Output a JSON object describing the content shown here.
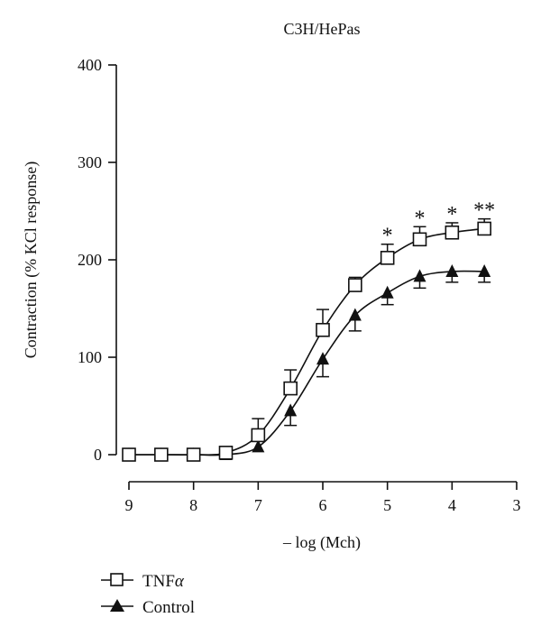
{
  "chart_data": {
    "type": "line",
    "title": "C3H/HePas",
    "xlabel": "– log (Mch)",
    "ylabel": "Contraction (% KCl response)",
    "xlim": [
      9,
      3
    ],
    "ylim": [
      0,
      400
    ],
    "x_reversed": true,
    "x_ticks": [
      9,
      8,
      7,
      6,
      5,
      4,
      3
    ],
    "y_ticks": [
      0,
      100,
      200,
      300,
      400
    ],
    "x": [
      9,
      8.5,
      8,
      7.5,
      7,
      6.5,
      6,
      5.5,
      5,
      4.5,
      4,
      3.5
    ],
    "series": [
      {
        "name": "TNFα",
        "marker": "open-square",
        "values": [
          0,
          0,
          0,
          2,
          20,
          68,
          128,
          174,
          202,
          221,
          228,
          232
        ],
        "error": [
          0,
          0,
          0,
          0,
          17,
          19,
          21,
          8,
          14,
          13,
          10,
          10
        ]
      },
      {
        "name": "Control",
        "marker": "filled-triangle",
        "values": [
          0,
          0,
          0,
          0,
          8,
          45,
          98,
          143,
          166,
          183,
          188,
          188
        ],
        "error": [
          0,
          0,
          0,
          0,
          0,
          15,
          18,
          16,
          12,
          12,
          11,
          11
        ]
      }
    ],
    "significance": [
      {
        "x": 5,
        "label": "*"
      },
      {
        "x": 4.5,
        "label": "*"
      },
      {
        "x": 4,
        "label": "*"
      },
      {
        "x": 3.5,
        "label": "**"
      }
    ],
    "legend": {
      "placement": "bottom-left",
      "label_prefix": "TNF",
      "label_italic": "α",
      "control_label": "Control"
    },
    "grid": false
  }
}
